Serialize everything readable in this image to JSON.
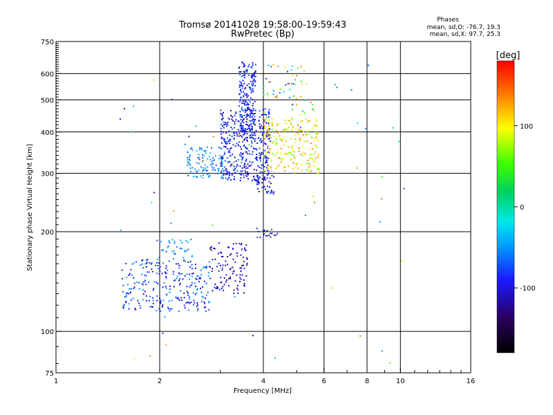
{
  "chart_data": {
    "type": "scatter",
    "title": "Tromsø 20141028 19:58:00-19:59:43",
    "subtitle": "RwPretec (Bp)",
    "xlabel": "Frequency [MHz]",
    "ylabel": "Stationary phase Virtual Height [km]",
    "x_scale": "log",
    "y_scale": "log",
    "xlim": [
      1,
      16
    ],
    "ylim": [
      75,
      750
    ],
    "x_ticks": [
      {
        "value": 1,
        "label": "1"
      },
      {
        "value": 2,
        "label": "2"
      },
      {
        "value": 4,
        "label": "4"
      },
      {
        "value": 6,
        "label": "6"
      },
      {
        "value": 8,
        "label": "8"
      },
      {
        "value": 10,
        "label": "10"
      },
      {
        "value": 16,
        "label": "16"
      }
    ],
    "y_ticks": [
      {
        "value": 75,
        "label": "75"
      },
      {
        "value": 100,
        "label": "100"
      },
      {
        "value": 200,
        "label": "200"
      },
      {
        "value": 300,
        "label": "300"
      },
      {
        "value": 400,
        "label": "400"
      },
      {
        "value": 500,
        "label": "500"
      },
      {
        "value": 600,
        "label": "600"
      },
      {
        "value": 750,
        "label": "750"
      }
    ],
    "grid_x": [
      2,
      4,
      6,
      8,
      10
    ],
    "grid_y": [
      100,
      200,
      300,
      400,
      500,
      600
    ],
    "phase_box": {
      "title": "Phases",
      "line_o": "mean, sd,O: -76.7, 19.3",
      "line_x": "mean, sd,X:  97.7, 25.3"
    },
    "colorbar": {
      "label": "[deg]",
      "range": [
        -180,
        180
      ],
      "ticks": [
        {
          "value": 100,
          "label": "100"
        },
        {
          "value": 0,
          "label": "0"
        },
        {
          "value": -100,
          "label": "-100"
        }
      ]
    },
    "clusters": [
      {
        "x": [
          1.55,
          2.8
        ],
        "y": [
          115,
          165
        ],
        "phase": [
          -120,
          -40
        ],
        "count": 260
      },
      {
        "x": [
          2.8,
          3.6
        ],
        "y": [
          130,
          185
        ],
        "phase": [
          -130,
          -90
        ],
        "count": 110
      },
      {
        "x": [
          1.95,
          2.5
        ],
        "y": [
          165,
          190
        ],
        "phase": [
          -80,
          -30
        ],
        "count": 35
      },
      {
        "x": [
          2.4,
          3.1
        ],
        "y": [
          290,
          360
        ],
        "phase": [
          -80,
          -30
        ],
        "count": 110
      },
      {
        "x": [
          3.0,
          4.2
        ],
        "y": [
          285,
          470
        ],
        "phase": [
          -125,
          -60
        ],
        "count": 420
      },
      {
        "x": [
          3.4,
          3.8
        ],
        "y": [
          380,
          650
        ],
        "phase": [
          -120,
          -60
        ],
        "count": 220
      },
      {
        "x": [
          3.8,
          4.3
        ],
        "y": [
          260,
          300
        ],
        "phase": [
          -120,
          -70
        ],
        "count": 45
      },
      {
        "x": [
          4.0,
          5.8
        ],
        "y": [
          300,
          440
        ],
        "phase": [
          60,
          140
        ],
        "count": 220
      },
      {
        "x": [
          4.0,
          5.6
        ],
        "y": [
          440,
          640
        ],
        "phase": [
          -90,
          160
        ],
        "count": 60
      },
      {
        "x": [
          3.8,
          4.4
        ],
        "y": [
          190,
          205
        ],
        "phase": [
          -120,
          -70
        ],
        "count": 20
      },
      {
        "x": [
          1.5,
          10.5
        ],
        "y": [
          80,
          640
        ],
        "phase": [
          -130,
          160
        ],
        "count": 55
      }
    ]
  }
}
